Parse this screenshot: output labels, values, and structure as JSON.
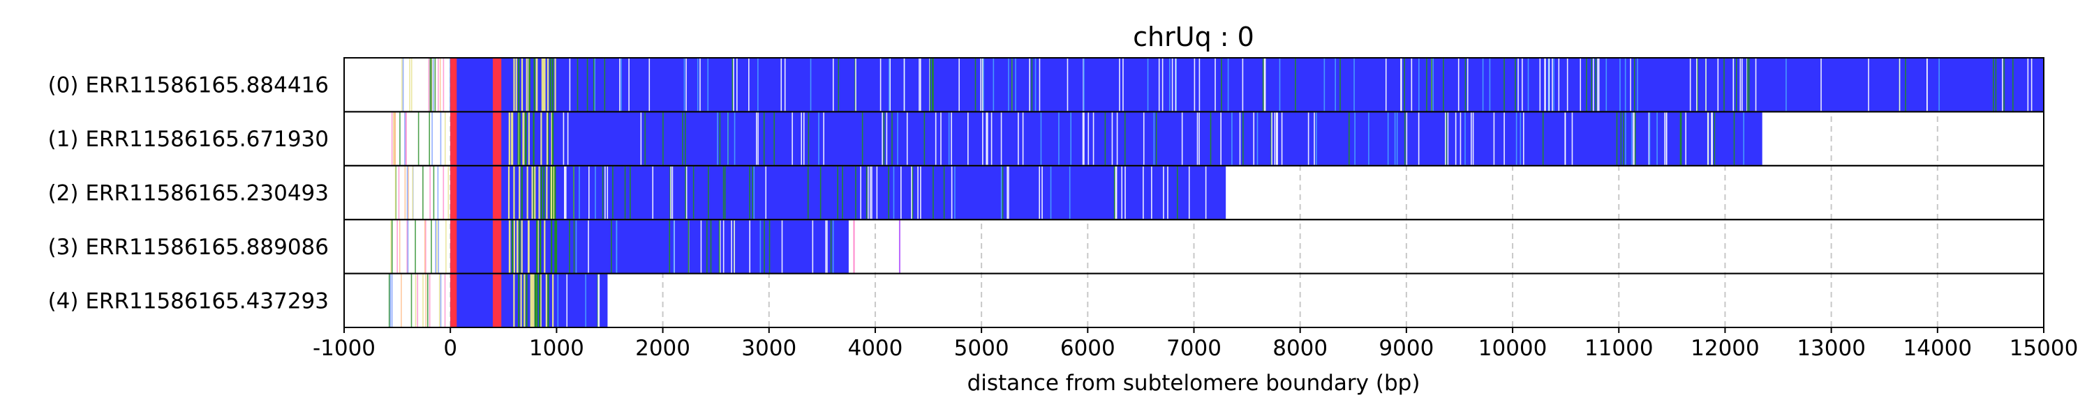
{
  "chart_data": {
    "type": "bar",
    "title": "chrUq : 0",
    "xlabel": "distance from subtelomere boundary (bp)",
    "ylabel": "",
    "xlim": [
      -1000,
      15000
    ],
    "xticks": [
      -1000,
      0,
      1000,
      2000,
      3000,
      4000,
      5000,
      6000,
      7000,
      8000,
      9000,
      10000,
      11000,
      12000,
      13000,
      14000,
      15000
    ],
    "grid": "vertical dashed at x ticks",
    "colors": {
      "read_body": "#3333ff",
      "subtelomere_red": "#ff3344",
      "green_mark": "#228b22",
      "white_mark": "#ffffff",
      "khaki_mark": "#e6e28a",
      "pink_mark": "#ff88cc",
      "violet_mark": "#bb66ff",
      "grid": "#c8c8c8"
    },
    "reads": [
      {
        "label": "(0) ERR11586165.884416",
        "end": 15000,
        "pre_start": -550
      },
      {
        "label": "(1) ERR11586165.671930",
        "end": 12350,
        "pre_start": -580
      },
      {
        "label": "(2) ERR11586165.230493",
        "end": 7300,
        "pre_start": -560
      },
      {
        "label": "(3) ERR11586165.889086",
        "end": 3750,
        "pre_start": -570
      },
      {
        "label": "(4) ERR11586165.437293",
        "end": 1480,
        "pre_start": -580
      }
    ]
  }
}
